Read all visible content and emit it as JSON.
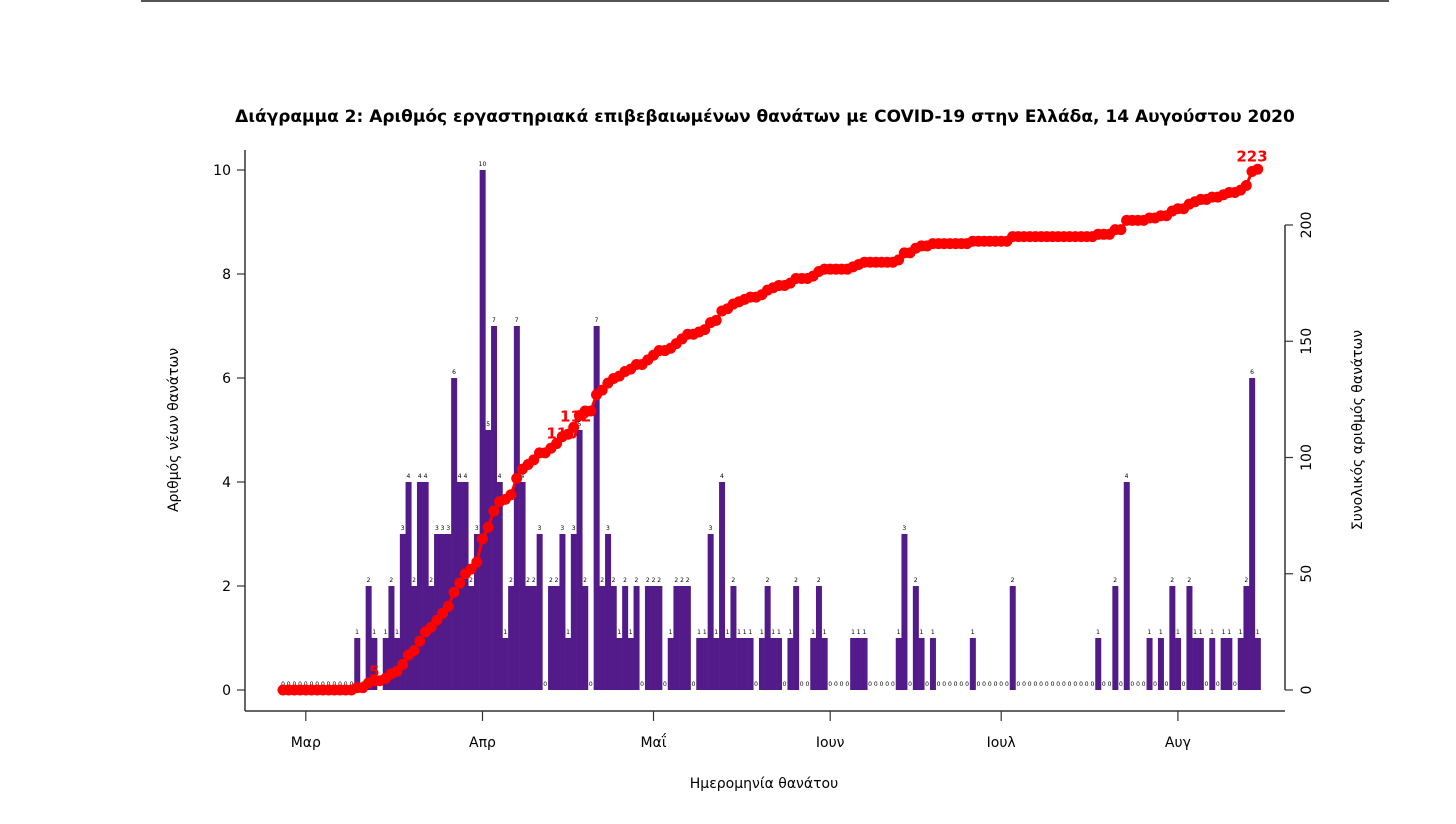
{
  "chart_data": {
    "type": "bar",
    "title": "Διάγραμμα 2: Αριθμός εργαστηριακά επιβεβαιωμένων θανάτων με COVID-19 στην Ελλάδα, 14 Αυγούστου 2020",
    "xlabel": "Ημερομηνία θανάτου",
    "ylabel": "Αριθμός νέων θανάτων",
    "y2label": "Συνολικός αριθμός θανάτων",
    "ylim": [
      0,
      10
    ],
    "y2lim": [
      0,
      200
    ],
    "yticks": [
      0,
      2,
      4,
      6,
      8,
      10
    ],
    "y2ticks": [
      0,
      50,
      100,
      150,
      200
    ],
    "xtick_labels": [
      "Μαρ",
      "Απρ",
      "Μαΐ",
      "Ιουν",
      "Ιουλ",
      "Αυγ"
    ],
    "xtick_days": [
      4,
      35,
      65,
      96,
      126,
      157
    ],
    "start_date": "2020-02-26",
    "grid": false,
    "series": [
      {
        "name": "Νέοι θάνατοι",
        "type": "bar",
        "color": "#531b8a",
        "values": [
          0,
          0,
          0,
          0,
          0,
          0,
          0,
          0,
          0,
          0,
          0,
          0,
          0,
          1,
          0,
          2,
          1,
          0,
          1,
          2,
          1,
          3,
          4,
          2,
          4,
          4,
          2,
          3,
          3,
          3,
          6,
          4,
          4,
          2,
          3,
          10,
          5,
          7,
          4,
          1,
          2,
          7,
          4,
          2,
          2,
          3,
          0,
          2,
          2,
          3,
          1,
          3,
          5,
          2,
          0,
          7,
          2,
          3,
          2,
          1,
          2,
          1,
          2,
          0,
          2,
          2,
          2,
          0,
          1,
          2,
          2,
          2,
          0,
          1,
          1,
          3,
          1,
          4,
          1,
          2,
          1,
          1,
          1,
          0,
          1,
          2,
          1,
          1,
          0,
          1,
          2,
          0,
          0,
          1,
          2,
          1,
          0,
          0,
          0,
          0,
          1,
          1,
          1,
          0,
          0,
          0,
          0,
          0,
          1,
          3,
          0,
          2,
          1,
          0,
          1,
          0,
          0,
          0,
          0,
          0,
          0,
          1,
          0,
          0,
          0,
          0,
          0,
          0,
          2,
          0,
          0,
          0,
          0,
          0,
          0,
          0,
          0,
          0,
          0,
          0,
          0,
          0,
          0,
          1,
          0,
          0,
          2,
          0,
          4,
          0,
          0,
          0,
          1,
          0,
          1,
          0,
          2,
          1,
          0,
          2,
          1,
          1,
          0,
          1,
          0,
          1,
          1,
          0,
          1,
          2,
          6,
          1
        ]
      },
      {
        "name": "Συνολικός αριθμός θανάτων",
        "type": "line",
        "color": "#ff0000",
        "axis": "right",
        "final_value": 223
      }
    ],
    "annotations": [
      {
        "text": "5",
        "series": "cumulative"
      },
      {
        "text": "110",
        "series": "cumulative"
      },
      {
        "text": "112",
        "series": "cumulative"
      },
      {
        "text": "223",
        "series": "cumulative"
      }
    ]
  }
}
